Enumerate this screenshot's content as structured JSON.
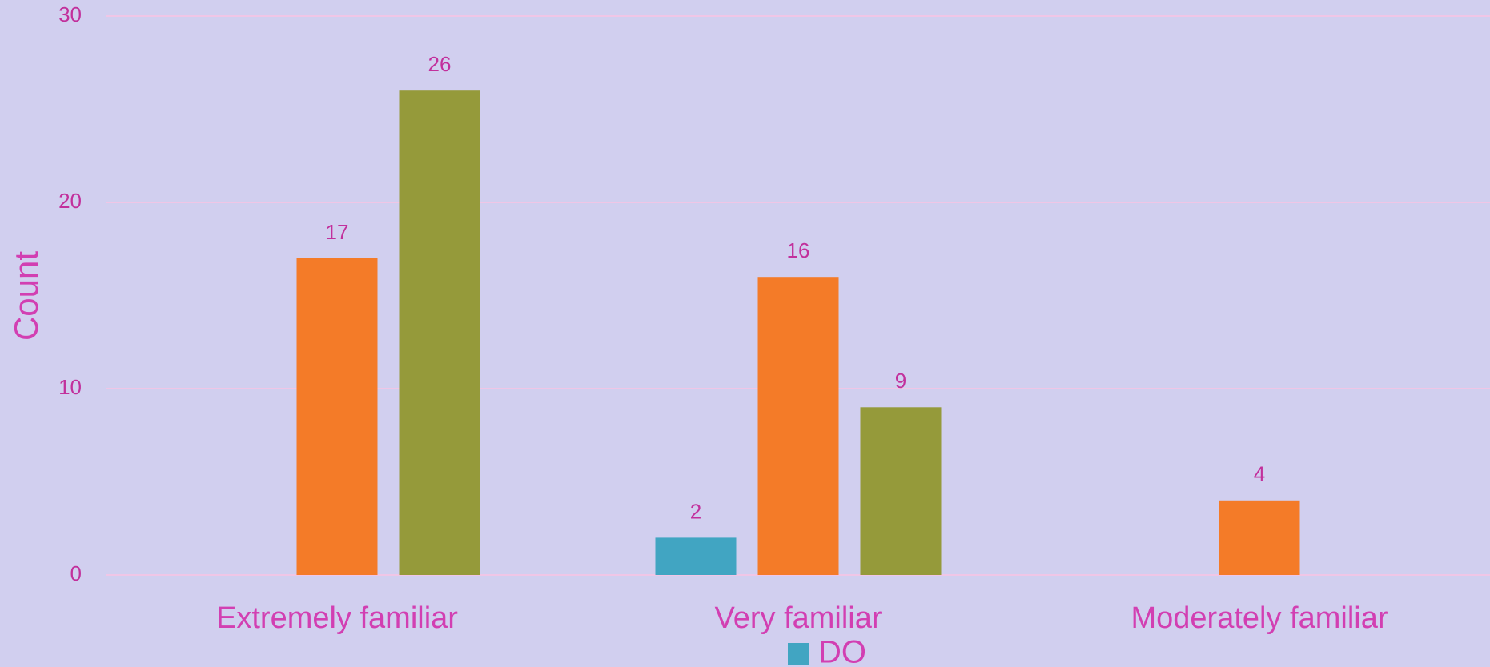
{
  "chart_data": {
    "type": "bar",
    "y_label": "Count",
    "categories": [
      "Extremely familiar",
      "Very familiar",
      "Moderately familiar"
    ],
    "series": [
      {
        "name": "DO",
        "color": "#41a5c2",
        "values": [
          null,
          2,
          null
        ]
      },
      {
        "color": "#f47b28",
        "values": [
          17,
          16,
          4
        ]
      },
      {
        "color": "#959a3a",
        "values": [
          26,
          9,
          null
        ]
      }
    ],
    "ylim": [
      0,
      30
    ],
    "yticks": [
      0,
      10,
      20,
      30
    ],
    "grid": true
  }
}
